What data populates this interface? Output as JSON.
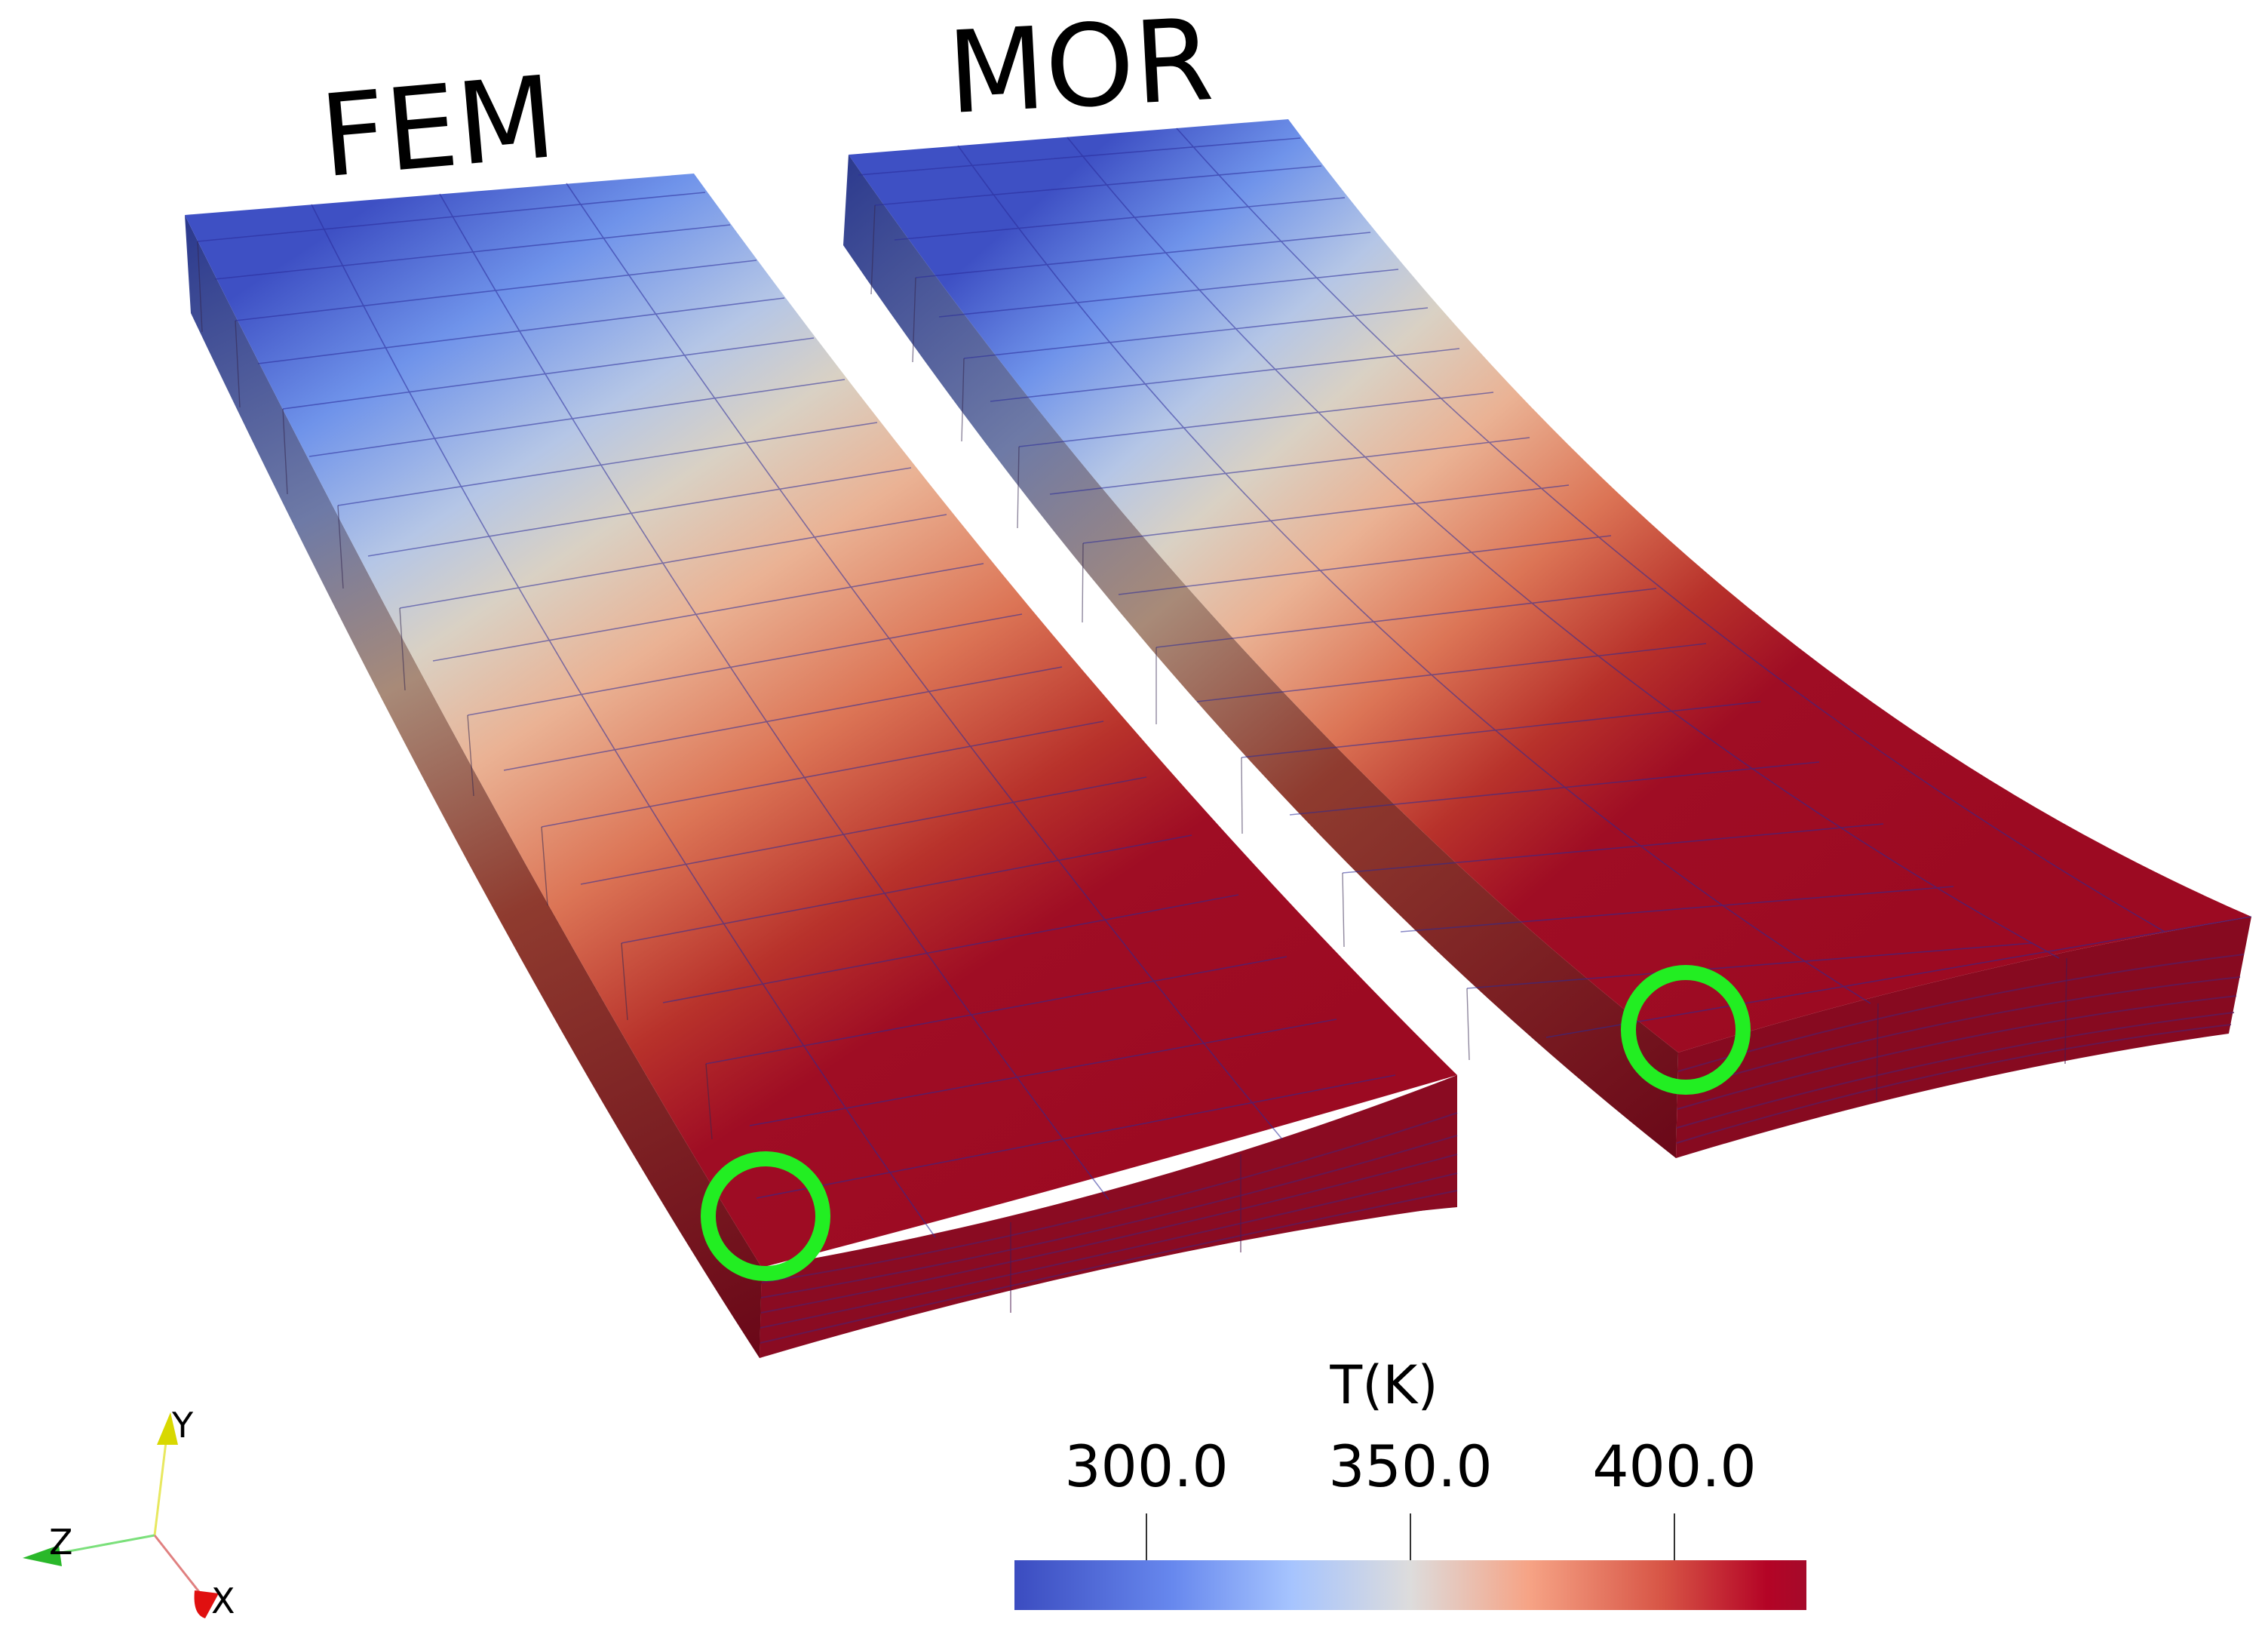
{
  "models": [
    {
      "label": "FEM"
    },
    {
      "label": "MOR"
    }
  ],
  "colorbar": {
    "title": "T(K)",
    "ticks": [
      "300.0",
      "350.0",
      "400.0"
    ],
    "range": [
      275,
      425
    ],
    "tick_values": [
      300,
      350,
      400
    ],
    "colors": [
      "#3b4cc0",
      "#8db0fe",
      "#dddcdc",
      "#f4987a",
      "#b40426",
      "#a50a2a"
    ]
  },
  "axes": {
    "y": "Y",
    "z": "Z",
    "x": "X",
    "colors": {
      "y": "#d8d800",
      "z": "#2ab82a",
      "x": "#e01010"
    }
  },
  "highlight_color": "#22ee22"
}
